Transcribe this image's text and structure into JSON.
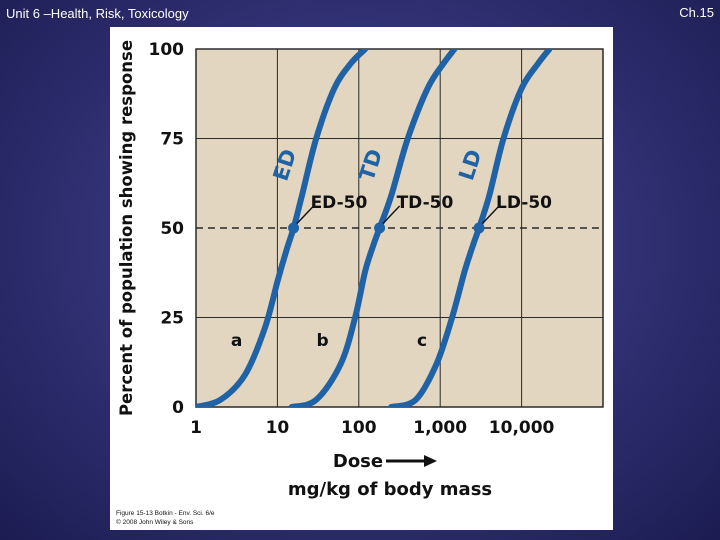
{
  "slide": {
    "title": "Unit 6 –Health, Risk, Toxicology",
    "chapter": "Ch.15"
  },
  "colors": {
    "plot_background": "#e2d6c0",
    "curve": "#1f62a6",
    "grid": "#2a2a2a",
    "text": "#111111"
  },
  "chart_data": {
    "type": "line",
    "ylabel": "Percent of population showing response",
    "xlabel": "Dose",
    "xlabel_units": "mg/kg of body mass",
    "x_scale": "log",
    "xlim": [
      1,
      100000
    ],
    "ylim": [
      0,
      100
    ],
    "x_ticks": [
      1,
      10,
      100,
      1000,
      10000
    ],
    "x_tick_labels": [
      "1",
      "10",
      "100",
      "1,000",
      "10,000"
    ],
    "y_ticks": [
      0,
      25,
      50,
      75,
      100
    ],
    "y_tick_labels": [
      "0",
      "25",
      "50",
      "75",
      "100"
    ],
    "grid": true,
    "series": [
      {
        "name": "ED",
        "label": "ED",
        "letter": "a",
        "marker_label": "ED-50",
        "x": [
          1,
          2,
          4,
          7,
          10,
          13,
          15.8,
          20,
          30,
          50,
          80,
          120
        ],
        "y": [
          0,
          2,
          9,
          22,
          35,
          44,
          50,
          59,
          75,
          89,
          96,
          100
        ]
      },
      {
        "name": "TD",
        "label": "TD",
        "letter": "b",
        "marker_label": "TD-50",
        "x": [
          15,
          30,
          60,
          90,
          120,
          150,
          180,
          250,
          400,
          700,
          1100,
          1500
        ],
        "y": [
          0,
          2,
          12,
          25,
          38,
          45,
          50,
          59,
          75,
          89,
          96,
          100
        ]
      },
      {
        "name": "LD",
        "label": "LD",
        "letter": "c",
        "marker_label": "LD-50",
        "x": [
          250,
          500,
          900,
          1400,
          2000,
          2600,
          3000,
          4000,
          6000,
          10000,
          16000,
          22000
        ],
        "y": [
          0,
          2,
          12,
          25,
          38,
          46,
          50,
          59,
          75,
          89,
          96,
          100
        ]
      }
    ],
    "annotations": {
      "reference_line_y": 50,
      "ed50_x": 15.8,
      "td50_x": 180,
      "ld50_x": 3000
    }
  },
  "caption": {
    "line1": "Figure 15-13  Botkin - Env. Sci. 6/e",
    "line2": "© 2008 John Wiley & Sons"
  }
}
